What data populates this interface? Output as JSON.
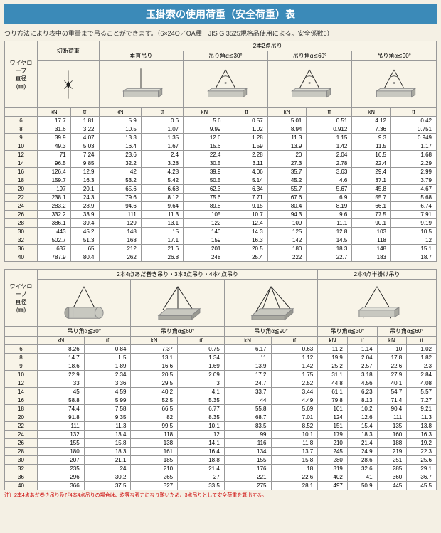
{
  "title": "玉掛索の使用荷重（安全荷重）表",
  "subtitle": "つり方法により表中の重量まで吊ることができます。（6×24O／OA種－JIS G 3525規格品使用による。安全係数6）",
  "footnote": "注）2本4点あだ巻き吊り及び4本4点吊りの場合は、均等な張力になり難いため、3点吊りとして安全荷重を算出する。",
  "row_label_line1": "ワイヤロープ",
  "row_label_line2": "直径",
  "row_label_line3": "(㎜)",
  "table1": {
    "group_headers": [
      "切断荷重",
      "2本2点吊り"
    ],
    "sub_headers": [
      "垂直吊り",
      "吊り角α≦30°",
      "吊り角α≦60°",
      "吊り角α≦90°"
    ],
    "unit_headers": [
      "kN",
      "tf",
      "kN",
      "tf",
      "kN",
      "tf",
      "kN",
      "tf",
      "kN",
      "tf"
    ],
    "sizes": [
      6,
      8,
      9,
      10,
      12,
      14,
      16,
      18,
      20,
      22,
      24,
      26,
      28,
      30,
      32,
      36,
      40
    ],
    "data": [
      [
        17.7,
        1.81,
        5.9,
        0.6,
        5.6,
        0.57,
        5.01,
        0.51,
        4.12,
        0.42
      ],
      [
        31.6,
        3.22,
        10.5,
        1.07,
        9.99,
        1.02,
        8.94,
        0.912,
        7.36,
        0.751
      ],
      [
        39.9,
        4.07,
        13.3,
        1.35,
        12.6,
        1.28,
        11.3,
        1.15,
        9.3,
        0.949
      ],
      [
        49.3,
        5.03,
        16.4,
        1.67,
        15.6,
        1.59,
        13.9,
        1.42,
        11.5,
        1.17
      ],
      [
        71.0,
        7.24,
        23.6,
        2.4,
        22.4,
        2.28,
        20.0,
        2.04,
        16.5,
        1.68
      ],
      [
        96.5,
        9.85,
        32.2,
        3.28,
        30.5,
        3.11,
        27.3,
        2.78,
        22.4,
        2.29
      ],
      [
        126.4,
        12.9,
        42.0,
        4.28,
        39.9,
        4.06,
        35.7,
        3.63,
        29.4,
        2.99
      ],
      [
        159.7,
        16.3,
        53.2,
        5.42,
        50.5,
        5.14,
        45.2,
        4.6,
        37.1,
        3.79
      ],
      [
        197.0,
        20.1,
        65.6,
        6.68,
        62.3,
        6.34,
        55.7,
        5.67,
        45.8,
        4.67
      ],
      [
        238.1,
        24.3,
        79.6,
        8.12,
        75.6,
        7.71,
        67.6,
        6.9,
        55.7,
        5.68
      ],
      [
        283.2,
        28.9,
        94.6,
        9.64,
        89.8,
        9.15,
        80.4,
        8.19,
        66.1,
        6.74
      ],
      [
        332.2,
        33.9,
        111,
        11.3,
        105,
        10.7,
        94.3,
        9.6,
        77.5,
        7.91
      ],
      [
        386.1,
        39.4,
        129,
        13.1,
        122,
        12.4,
        109,
        11.1,
        90.1,
        9.19
      ],
      [
        443.0,
        45.2,
        148,
        15.0,
        140,
        14.3,
        125,
        12.8,
        103,
        10.5
      ],
      [
        502.7,
        51.3,
        168,
        17.1,
        159,
        16.3,
        142,
        14.5,
        118,
        12.0
      ],
      [
        637.0,
        65.0,
        212,
        21.6,
        201,
        20.5,
        180,
        18.3,
        148,
        15.1
      ],
      [
        787.9,
        80.4,
        262,
        26.8,
        248,
        25.4,
        222,
        22.7,
        183,
        18.7
      ]
    ]
  },
  "table2": {
    "group_headers": [
      "2本4点あだ巻き吊り・3本3点吊り・4本4点吊り",
      "2本4点半掛け吊り"
    ],
    "sub_headers": [
      "吊り角α≦30°",
      "吊り角α≦60°",
      "吊り角α≦90°",
      "吊り角α≦30°",
      "吊り角α≦60°"
    ],
    "unit_headers": [
      "kN",
      "tf",
      "kN",
      "tf",
      "kN",
      "tf",
      "kN",
      "tf",
      "kN",
      "tf"
    ],
    "sizes": [
      6,
      8,
      9,
      10,
      12,
      14,
      16,
      18,
      20,
      22,
      24,
      26,
      28,
      30,
      32,
      36,
      40
    ],
    "data": [
      [
        8.26,
        0.84,
        7.37,
        0.75,
        6.17,
        0.63,
        11.2,
        1.14,
        10.0,
        1.02
      ],
      [
        14.7,
        1.5,
        13.1,
        1.34,
        11.0,
        1.12,
        19.9,
        2.04,
        17.8,
        1.82
      ],
      [
        18.6,
        1.89,
        16.6,
        1.69,
        13.9,
        1.42,
        25.2,
        2.57,
        22.6,
        2.3
      ],
      [
        22.9,
        2.34,
        20.5,
        2.09,
        17.2,
        1.75,
        31.1,
        3.18,
        27.9,
        2.84
      ],
      [
        33.0,
        3.36,
        29.5,
        3.0,
        24.7,
        2.52,
        44.8,
        4.56,
        40.1,
        4.08
      ],
      [
        45.0,
        4.59,
        40.2,
        4.1,
        33.7,
        3.44,
        61.1,
        6.23,
        54.7,
        5.57
      ],
      [
        58.8,
        5.99,
        52.5,
        5.35,
        44.0,
        4.49,
        79.8,
        8.13,
        71.4,
        7.27
      ],
      [
        74.4,
        7.58,
        66.5,
        6.77,
        55.8,
        5.69,
        101,
        10.2,
        90.4,
        9.21
      ],
      [
        91.8,
        9.35,
        82.0,
        8.35,
        68.7,
        7.01,
        124,
        12.6,
        111,
        11.3
      ],
      [
        111,
        11.3,
        99.5,
        10.1,
        83.5,
        8.52,
        151,
        15.4,
        135,
        13.8
      ],
      [
        132,
        13.4,
        118,
        12.0,
        99.0,
        10.1,
        179,
        18.3,
        160,
        16.3
      ],
      [
        155,
        15.8,
        138,
        14.1,
        116,
        11.8,
        210,
        21.4,
        188,
        19.2
      ],
      [
        180,
        18.3,
        161,
        16.4,
        134,
        13.7,
        245,
        24.9,
        219,
        22.3
      ],
      [
        207,
        21.1,
        185,
        18.8,
        155,
        15.8,
        280,
        28.6,
        251,
        25.6
      ],
      [
        235,
        24.0,
        210,
        21.4,
        176,
        18.0,
        319,
        32.6,
        285,
        29.1
      ],
      [
        296,
        30.2,
        265,
        27.0,
        221,
        22.6,
        402,
        41.0,
        360,
        36.7
      ],
      [
        366,
        37.5,
        327,
        33.5,
        275,
        28.1,
        497,
        50.9,
        445,
        45.5
      ]
    ]
  },
  "colors": {
    "bg": "#f4f0e4",
    "title_bg": "#3b8ab8",
    "cell_bg": "#ffffff",
    "header_bg": "#f8f4e8",
    "border": "#999999",
    "footnote": "#cc0000",
    "load_gray": "#b8b8b0",
    "load_dark": "#888880",
    "hook_black": "#222222"
  }
}
